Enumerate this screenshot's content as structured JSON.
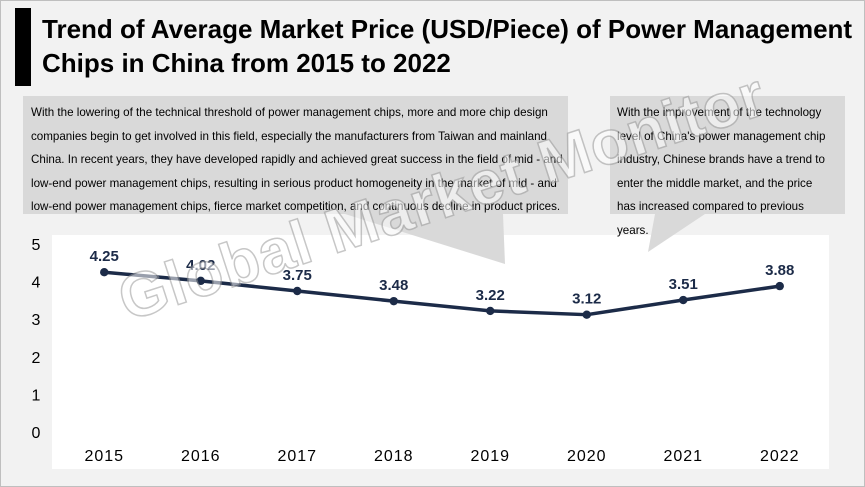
{
  "title": "Trend of Average Market Price (USD/Piece) of Power Management Chips in China from 2015 to 2022",
  "callouts": {
    "left": "With the lowering of the technical threshold of power management chips, more and more chip design companies begin to get involved in this field, especially the manufacturers from Taiwan and mainland China. In recent years, they have developed rapidly and achieved great success in the field of mid - and low-end power management chips, resulting in serious product homogeneity in the market of mid - and low-end power management chips, fierce market competition, and continuous decline in product prices.",
    "right": "With the improvement of the technology level of China's power management chip industry, Chinese brands have a trend to enter the middle market, and the price has increased compared to previous years."
  },
  "watermark": "Global Market Monitor",
  "colors": {
    "line": "#1c2b48",
    "callout_fill": "#d9d9d9",
    "background": "#f2f2f2",
    "plot_background": "#ffffff",
    "gridline": "#d9d9d9"
  },
  "chart_data": {
    "type": "line",
    "title": "Trend of Average Market Price (USD/Piece) of Power Management Chips in China from 2015 to 2022",
    "categories": [
      "2015",
      "2016",
      "2017",
      "2018",
      "2019",
      "2020",
      "2021",
      "2022"
    ],
    "series": [
      {
        "values": [
          4.25,
          4.02,
          3.75,
          3.48,
          3.22,
          3.12,
          3.51,
          3.88
        ]
      }
    ],
    "data_labels": [
      "4.25",
      "4.02",
      "3.75",
      "3.48",
      "3.22",
      "3.12",
      "3.51",
      "3.88"
    ],
    "y_ticks": [
      "0",
      "1",
      "2",
      "3",
      "4",
      "5"
    ],
    "ylim": [
      0,
      5
    ],
    "grid": false,
    "legend": "none"
  }
}
